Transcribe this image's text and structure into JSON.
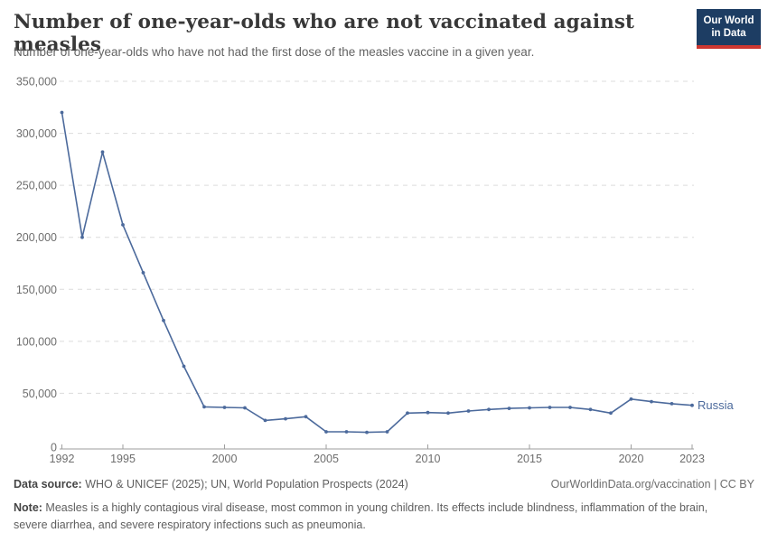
{
  "header": {
    "title": "Number of one-year-olds who are not vaccinated against measles",
    "subtitle": "Number of one-year-olds who have not had the first dose of the measles vaccine in a given year.",
    "logo": {
      "line1": "Our World",
      "line2": "in Data"
    }
  },
  "chart_data": {
    "type": "line",
    "title": "Number of one-year-olds who are not vaccinated against measles",
    "xlabel": "",
    "ylabel": "",
    "series_label": "Russia",
    "x": [
      1992,
      1993,
      1994,
      1995,
      1996,
      1997,
      1998,
      1999,
      2000,
      2001,
      2002,
      2003,
      2004,
      2005,
      2006,
      2007,
      2008,
      2009,
      2010,
      2011,
      2012,
      2013,
      2014,
      2015,
      2016,
      2017,
      2018,
      2019,
      2020,
      2021,
      2022,
      2023
    ],
    "values": [
      320000,
      200000,
      282000,
      212000,
      166000,
      120000,
      76000,
      37000,
      36500,
      36000,
      24000,
      25500,
      27500,
      13000,
      13000,
      12500,
      13000,
      31000,
      31500,
      31000,
      33000,
      34500,
      35500,
      36000,
      36500,
      36500,
      34500,
      31000,
      44500,
      42000,
      40000,
      38500
    ],
    "xticks": [
      1992,
      1995,
      2000,
      2005,
      2010,
      2015,
      2020,
      2023
    ],
    "yticks": [
      0,
      50000,
      100000,
      150000,
      200000,
      250000,
      300000,
      350000
    ],
    "xlim": [
      1992,
      2023
    ],
    "ylim": [
      0,
      350000
    ],
    "grid": "horizontal-dashed",
    "legend_position": "end-of-line",
    "line_color": "#4c6a9c",
    "grid_color": "#dcdcdc",
    "axis_color": "#9e9e9e",
    "tick_label_color": "#6e6e6e"
  },
  "footer": {
    "data_source_label": "Data source:",
    "data_source": " WHO & UNICEF (2025); UN, World Population Prospects (2024)",
    "link": "OurWorldinData.org/vaccination | CC BY",
    "note_label": "Note:",
    "note": " Measles is a highly contagious viral disease, most common in young children. Its effects include blindness, inflammation of the brain, severe diarrhea, and severe respiratory infections such as pneumonia."
  }
}
